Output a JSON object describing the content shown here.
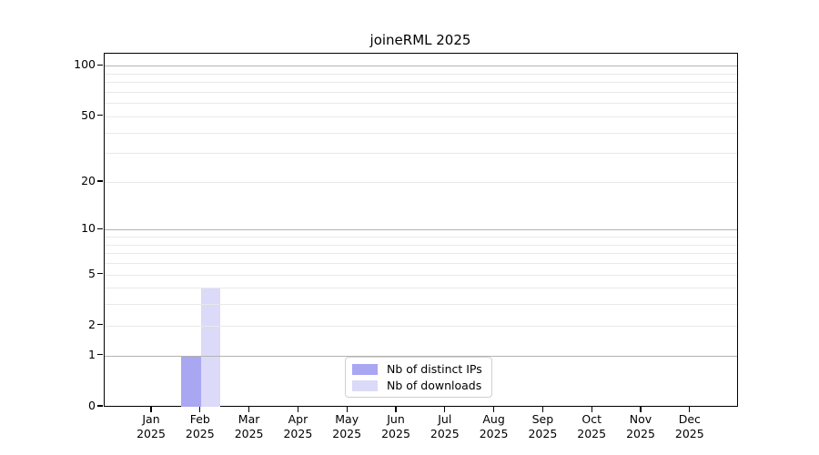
{
  "chart_data": {
    "type": "bar",
    "title": "joineRML 2025",
    "categories": [
      "Jan 2025",
      "Feb 2025",
      "Mar 2025",
      "Apr 2025",
      "May 2025",
      "Jun 2025",
      "Jul 2025",
      "Aug 2025",
      "Sep 2025",
      "Oct 2025",
      "Nov 2025",
      "Dec 2025"
    ],
    "x_tick_months": [
      "Jan",
      "Feb",
      "Mar",
      "Apr",
      "May",
      "Jun",
      "Jul",
      "Aug",
      "Sep",
      "Oct",
      "Nov",
      "Dec"
    ],
    "x_tick_year": "2025",
    "series": [
      {
        "name": "Nb of distinct IPs",
        "color": "#a9a6f2",
        "values": [
          0,
          1,
          0,
          0,
          0,
          0,
          0,
          0,
          0,
          0,
          0,
          0
        ]
      },
      {
        "name": "Nb of downloads",
        "color": "#dbdaf8",
        "values": [
          0,
          4,
          0,
          0,
          0,
          0,
          0,
          0,
          0,
          0,
          0,
          0
        ]
      }
    ],
    "xlabel": "",
    "ylabel": "",
    "y_scale": "log1p",
    "ylim": [
      0,
      118
    ],
    "y_ticks": [
      0,
      1,
      2,
      5,
      10,
      20,
      50,
      100
    ],
    "y_gridlines_major": [
      1,
      10,
      100
    ],
    "y_gridlines_minor": [
      2,
      3,
      4,
      5,
      6,
      7,
      8,
      9,
      20,
      30,
      40,
      50,
      60,
      70,
      80,
      90
    ],
    "grid": true,
    "legend_position": "bottom-center-inside"
  },
  "colors": {
    "background": "#ffffff",
    "major_gridline": "#b3b3b3",
    "minor_gridline": "#e9e9e9",
    "spine": "#000000",
    "text": "#000000",
    "legend_border": "#d0d0d0"
  }
}
